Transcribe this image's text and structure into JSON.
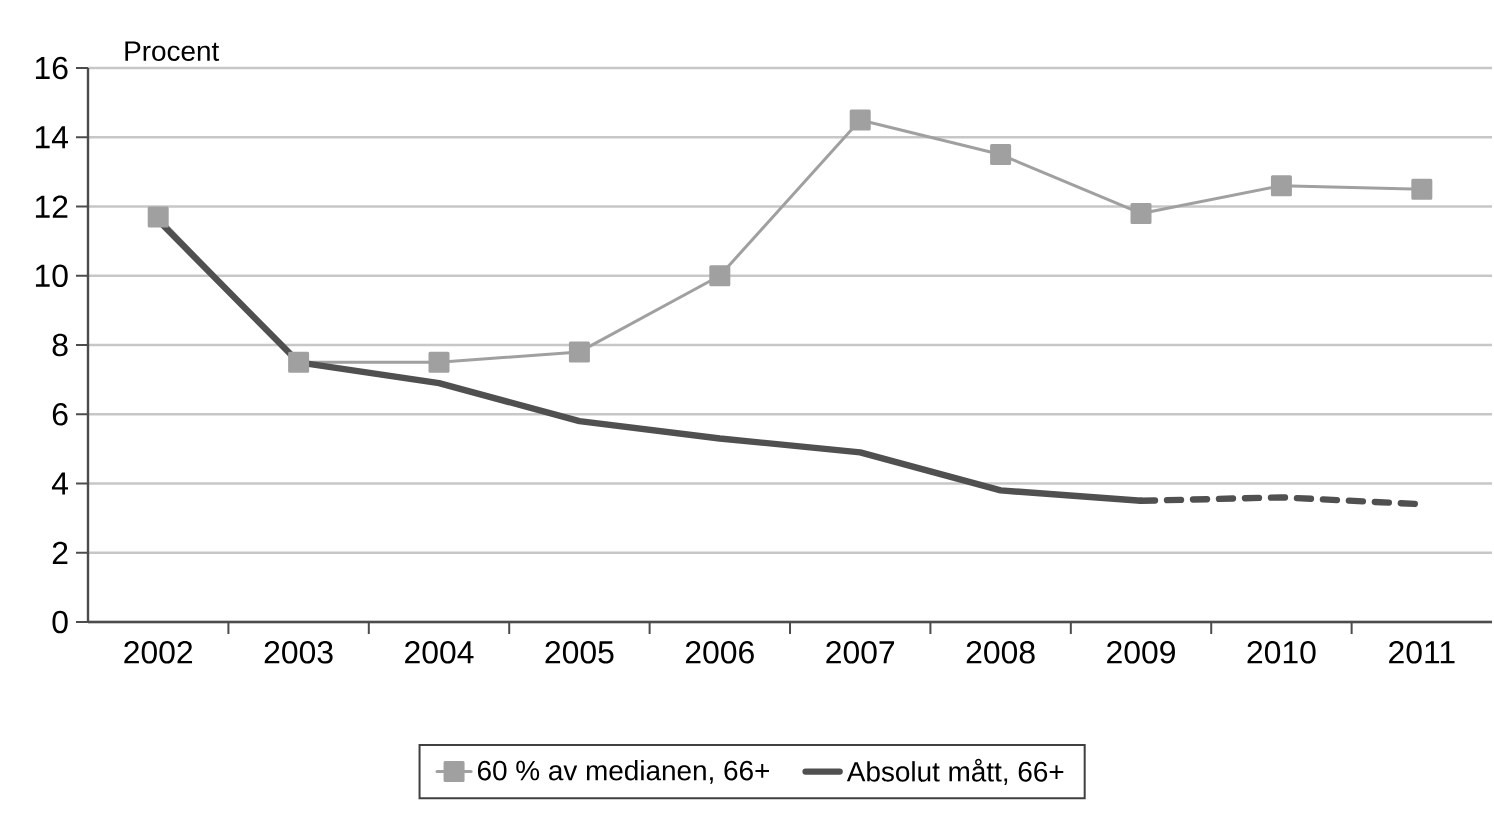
{
  "chart_data": {
    "type": "line",
    "ylabel": "Procent",
    "categories": [
      "2002",
      "2003",
      "2004",
      "2005",
      "2006",
      "2007",
      "2008",
      "2009",
      "2010",
      "2011"
    ],
    "series": [
      {
        "name": "60 % av medianen, 66+",
        "color": "#a0a0a0",
        "marker": "square",
        "values": [
          11.7,
          7.5,
          7.5,
          7.8,
          10.0,
          14.5,
          13.5,
          11.8,
          12.6,
          12.5
        ]
      },
      {
        "name": "Absolut mått, 66+",
        "color": "#505050",
        "marker": "none",
        "values": [
          11.6,
          7.5,
          6.9,
          5.8,
          5.3,
          4.9,
          3.8,
          3.5,
          null,
          null
        ]
      },
      {
        "color": "#505050",
        "marker": "none",
        "line_style": "dashed",
        "values": [
          null,
          null,
          null,
          null,
          null,
          null,
          null,
          3.5,
          3.6,
          3.4
        ]
      }
    ],
    "ylim": [
      0,
      16
    ],
    "yticks": [
      0,
      2,
      4,
      6,
      8,
      10,
      12,
      14,
      16
    ],
    "grid": "y",
    "legend": "bottom"
  }
}
